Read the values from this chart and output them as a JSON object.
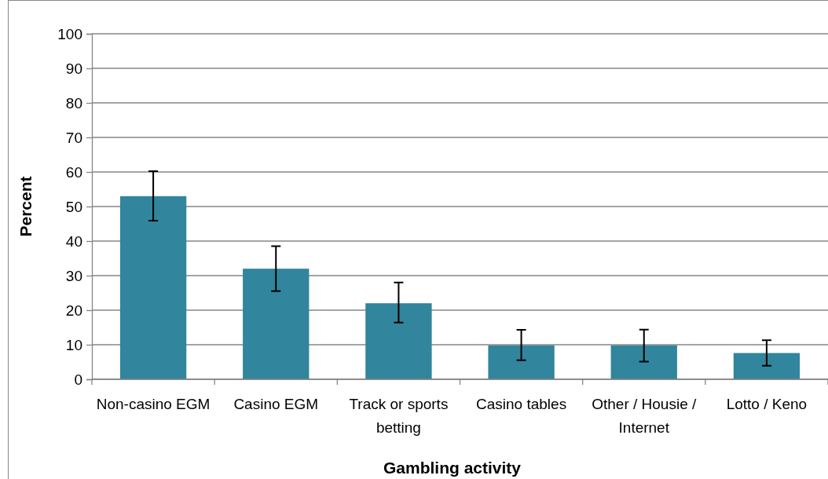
{
  "chart_data": {
    "type": "bar",
    "xlabel": "Gambling activity",
    "ylabel": "Percent",
    "categories": [
      "Non-casino EGM",
      "Casino EGM",
      "Track or sports betting",
      "Casino tables",
      "Other / Housie / Internet",
      "Lotto / Keno"
    ],
    "values": [
      53,
      32,
      22,
      9.8,
      9.8,
      7.6
    ],
    "errors": [
      [
        45.9,
        60.2
      ],
      [
        25.5,
        38.5
      ],
      [
        16.4,
        28
      ],
      [
        5.5,
        14.3
      ],
      [
        5.1,
        14.4
      ],
      [
        3.9,
        11.3
      ]
    ],
    "color": "#31859c",
    "ylim": [
      0,
      100
    ],
    "yticks": [
      0,
      10,
      20,
      30,
      40,
      50,
      60,
      70,
      80,
      90,
      100
    ],
    "grid": "y"
  }
}
